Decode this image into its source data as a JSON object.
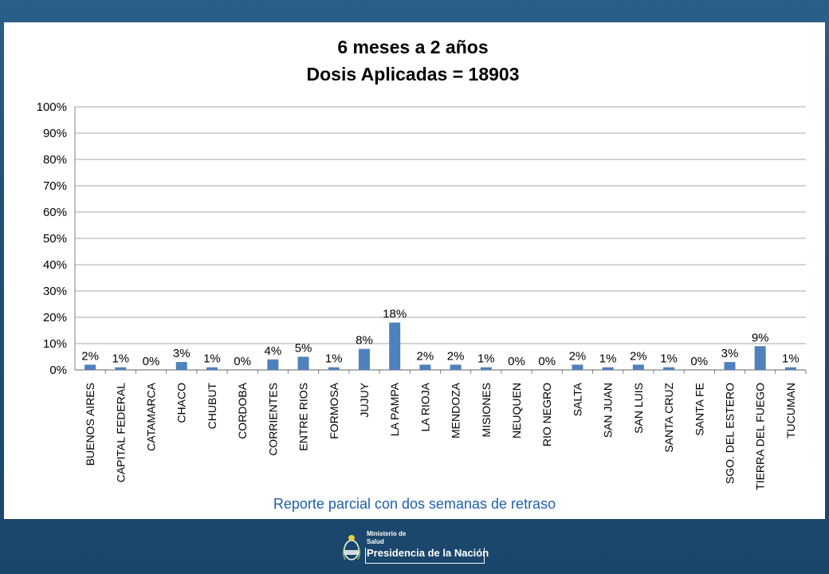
{
  "chart_data": {
    "type": "bar",
    "title": [
      "6 meses a 2 años",
      "Dosis Aplicadas = 18903"
    ],
    "categories": [
      "BUENOS AIRES",
      "CAPITAL FEDERAL",
      "CATAMARCA",
      "CHACO",
      "CHUBUT",
      "CORDOBA",
      "CORRIENTES",
      "ENTRE RIOS",
      "FORMOSA",
      "JUJUY",
      "LA PAMPA",
      "LA RIOJA",
      "MENDOZA",
      "MISIONES",
      "NEUQUEN",
      "RIO NEGRO",
      "SALTA",
      "SAN JUAN",
      "SAN LUIS",
      "SANTA CRUZ",
      "SANTA FE",
      "SGO. DEL ESTERO",
      "TIERRA DEL FUEGO",
      "TUCUMAN"
    ],
    "values": [
      2,
      1,
      0,
      3,
      1,
      0,
      4,
      5,
      1,
      8,
      18,
      2,
      2,
      1,
      0,
      0,
      2,
      1,
      2,
      1,
      0,
      3,
      9,
      1
    ],
    "data_labels": [
      "2%",
      "1%",
      "0%",
      "3%",
      "1%",
      "0%",
      "4%",
      "5%",
      "1%",
      "8%",
      "18%",
      "2%",
      "2%",
      "1%",
      "0%",
      "0%",
      "2%",
      "1%",
      "2%",
      "1%",
      "0%",
      "3%",
      "9%",
      "1%"
    ],
    "ylim": [
      0,
      100
    ],
    "yticks": [
      "0%",
      "10%",
      "20%",
      "30%",
      "40%",
      "50%",
      "60%",
      "70%",
      "80%",
      "90%",
      "100%"
    ],
    "grid": true,
    "legend": "none",
    "bar_color": "#4f81bd"
  },
  "footnote": "Reporte parcial con dos semanas de retraso",
  "logo": {
    "line1": "Ministerio de",
    "line2": "Salud",
    "line3": "Presidencia de la Nación"
  }
}
